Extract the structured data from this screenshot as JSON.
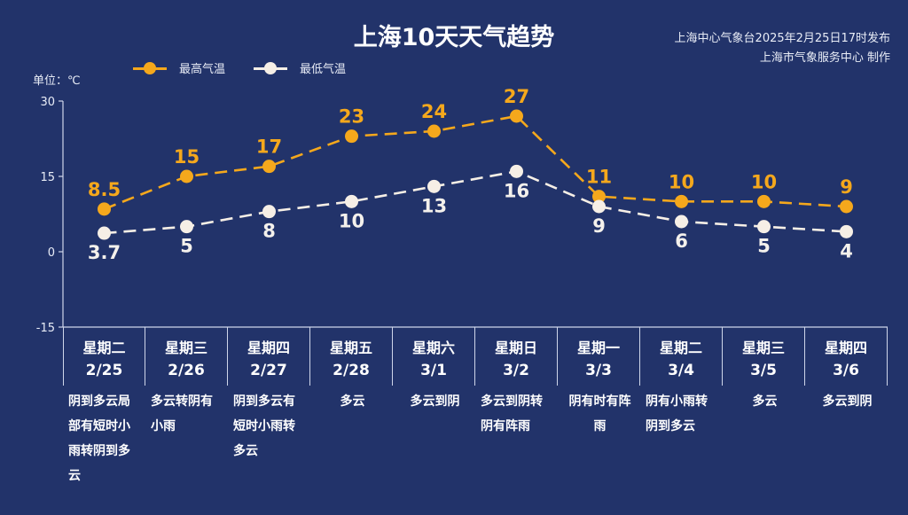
{
  "header": {
    "title": "上海10天天气趋势",
    "publisher_line1": "上海中心气象台2025年2月25日17时发布",
    "publisher_line2": "上海市气象服务中心 制作",
    "unit_label": "单位：℃"
  },
  "legend": [
    {
      "label": "最高气温",
      "color": "#f5a81c"
    },
    {
      "label": "最低气温",
      "color": "#f6efe6"
    }
  ],
  "colors": {
    "background": "#22336a",
    "high": "#f5a81c",
    "low": "#f6efe6",
    "axis": "#cfd6ea"
  },
  "days": [
    {
      "week": "星期二",
      "date": "2/25",
      "desc": "阴到多云局部有短时小雨转阴到多云"
    },
    {
      "week": "星期三",
      "date": "2/26",
      "desc": "多云转阴有小雨"
    },
    {
      "week": "星期四",
      "date": "2/27",
      "desc": "阴到多云有短时小雨转多云"
    },
    {
      "week": "星期五",
      "date": "2/28",
      "desc": "多云"
    },
    {
      "week": "星期六",
      "date": "3/1",
      "desc": "多云到阴"
    },
    {
      "week": "星期日",
      "date": "3/2",
      "desc": "多云到阴转阴有阵雨"
    },
    {
      "week": "星期一",
      "date": "3/3",
      "desc": "阴有时有阵雨"
    },
    {
      "week": "星期二",
      "date": "3/4",
      "desc": "阴有小雨转阴到多云"
    },
    {
      "week": "星期三",
      "date": "3/5",
      "desc": "多云"
    },
    {
      "week": "星期四",
      "date": "3/6",
      "desc": "多云到阴"
    }
  ],
  "chart_data": {
    "type": "line",
    "title": "上海10天天气趋势",
    "xlabel": "",
    "ylabel": "单位：℃",
    "categories": [
      "星期二 2/25",
      "星期三 2/26",
      "星期四 2/27",
      "星期五 2/28",
      "星期六 3/1",
      "星期日 3/2",
      "星期一 3/3",
      "星期二 3/4",
      "星期三 3/5",
      "星期四 3/6"
    ],
    "series": [
      {
        "name": "最高气温",
        "values": [
          8.5,
          15,
          17,
          23,
          24,
          27,
          11,
          10,
          10,
          9
        ],
        "color": "#f5a81c",
        "labels": [
          "8.5",
          "15",
          "17",
          "23",
          "24",
          "27",
          "11",
          "10",
          "10",
          "9"
        ]
      },
      {
        "name": "最低气温",
        "values": [
          3.7,
          5,
          8,
          10,
          13,
          16,
          9,
          6,
          5,
          4
        ],
        "color": "#f6efe6",
        "labels": [
          "3.7",
          "5",
          "8",
          "10",
          "13",
          "16",
          "9",
          "6",
          "5",
          "4"
        ]
      }
    ],
    "yticks": [
      30,
      15,
      0,
      -15
    ],
    "ylim": [
      -15,
      30
    ],
    "grid": false,
    "legend_position": "top"
  }
}
